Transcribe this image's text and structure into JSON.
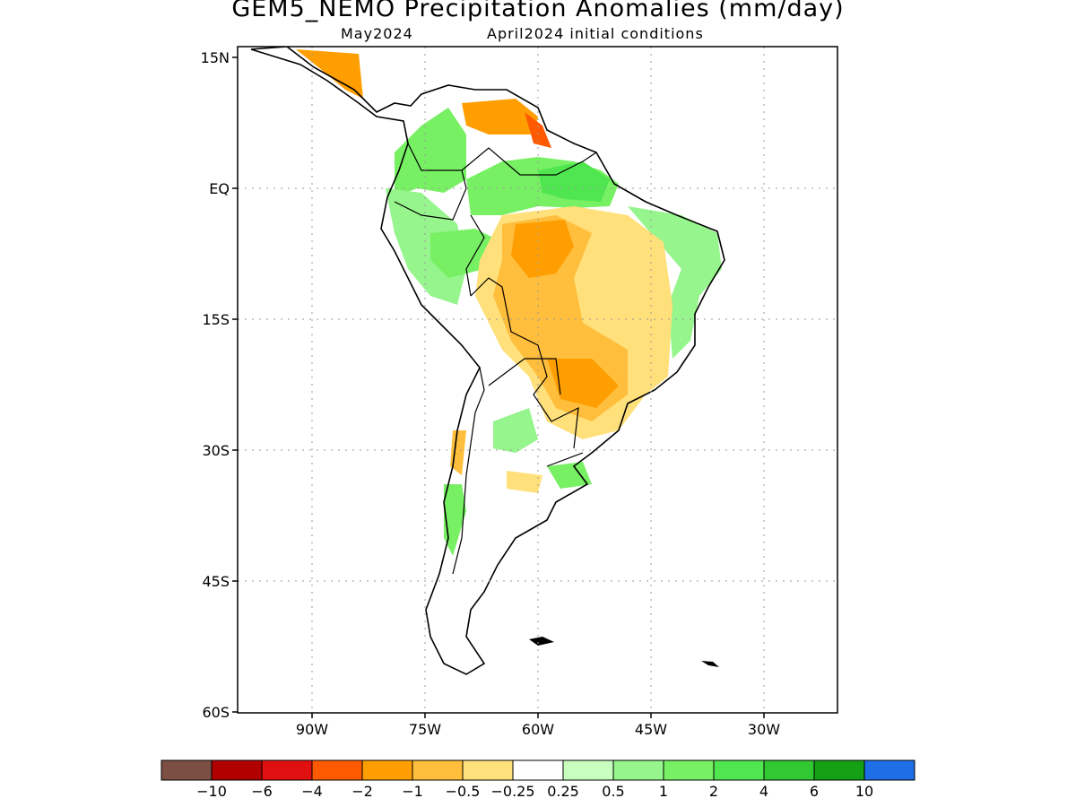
{
  "title": "GEM5_NEMO Precipitation Anomalies (mm/day)",
  "subtitle_left": "May2024",
  "subtitle_right": "April2024 initial conditions",
  "map": {
    "lat_labels": [
      "15N",
      "EQ",
      "15S",
      "30S",
      "45S",
      "60S"
    ],
    "lon_labels": [
      "90W",
      "75W",
      "60W",
      "45W",
      "30W"
    ]
  },
  "legend": {
    "colors": [
      "#7b4f42",
      "#b00000",
      "#e01010",
      "#ff5a00",
      "#ff9e00",
      "#ffbe3c",
      "#ffe07a",
      "#ffffff",
      "#c8ffbe",
      "#96f58c",
      "#78f064",
      "#50e650",
      "#32c832",
      "#14a014",
      "#1e6ee6"
    ],
    "labels": [
      "−10",
      "−6",
      "−4",
      "−2",
      "−1",
      "−0.5",
      "−0.25",
      "0.25",
      "0.5",
      "1",
      "2",
      "4",
      "6",
      "10"
    ]
  }
}
